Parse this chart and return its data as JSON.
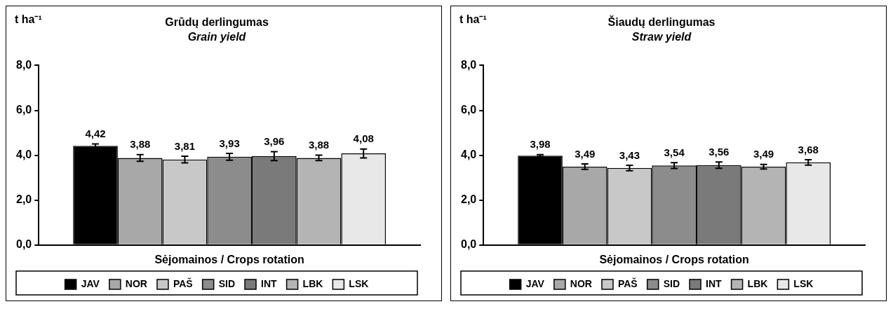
{
  "chart_data": [
    {
      "type": "bar",
      "title": "Grūdų derlingumas",
      "subtitle": "Grain yield",
      "ylabel": "t ha⁻¹",
      "xlabel": "Sėjomainos / Crops rotation",
      "categories": [
        null
      ],
      "ylim": [
        0,
        8
      ],
      "yticks": [
        {
          "value": 0,
          "label": "0,0"
        },
        {
          "value": 2,
          "label": "2,0"
        },
        {
          "value": 4,
          "label": "4,0"
        },
        {
          "value": 6,
          "label": "6,0"
        },
        {
          "value": 8,
          "label": "8,0"
        }
      ],
      "grid": false,
      "legend": "bottom",
      "tick_labels": "y",
      "series": [
        {
          "name": "JAV",
          "color": "#000000",
          "values": [
            4.42
          ],
          "errors": [
            0.08
          ],
          "value_labels": [
            "4,42"
          ]
        },
        {
          "name": "NOR",
          "color": "#a8a8a8",
          "values": [
            3.88
          ],
          "errors": [
            0.15
          ],
          "value_labels": [
            "3,88"
          ]
        },
        {
          "name": "PAŠ",
          "color": "#c8c8c8",
          "values": [
            3.81
          ],
          "errors": [
            0.15
          ],
          "value_labels": [
            "3,81"
          ]
        },
        {
          "name": "SID",
          "color": "#8c8c8c",
          "values": [
            3.93
          ],
          "errors": [
            0.15
          ],
          "value_labels": [
            "3,93"
          ]
        },
        {
          "name": "INT",
          "color": "#7a7a7a",
          "values": [
            3.96
          ],
          "errors": [
            0.2
          ],
          "value_labels": [
            "3,96"
          ]
        },
        {
          "name": "LBK",
          "color": "#b4b4b4",
          "values": [
            3.88
          ],
          "errors": [
            0.12
          ],
          "value_labels": [
            "3,88"
          ]
        },
        {
          "name": "LSK",
          "color": "#e8e8e8",
          "values": [
            4.08
          ],
          "errors": [
            0.2
          ],
          "value_labels": [
            "4,08"
          ]
        }
      ]
    },
    {
      "type": "bar",
      "title": "Šiaudų derlingumas",
      "subtitle": "Straw yield",
      "ylabel": "t ha⁻¹",
      "xlabel": "Sėjomainos / Crops rotation",
      "categories": [
        null
      ],
      "ylim": [
        0,
        8
      ],
      "yticks": [
        {
          "value": 0,
          "label": "0,0"
        },
        {
          "value": 2,
          "label": "2,0"
        },
        {
          "value": 4,
          "label": "4,0"
        },
        {
          "value": 6,
          "label": "6,0"
        },
        {
          "value": 8,
          "label": "8,0"
        }
      ],
      "grid": false,
      "legend": "bottom",
      "tick_labels": "y",
      "series": [
        {
          "name": "JAV",
          "color": "#000000",
          "values": [
            3.98
          ],
          "errors": [
            0.05
          ],
          "value_labels": [
            "3,98"
          ]
        },
        {
          "name": "NOR",
          "color": "#a8a8a8",
          "values": [
            3.49
          ],
          "errors": [
            0.12
          ],
          "value_labels": [
            "3,49"
          ]
        },
        {
          "name": "PAŠ",
          "color": "#c8c8c8",
          "values": [
            3.43
          ],
          "errors": [
            0.12
          ],
          "value_labels": [
            "3,43"
          ]
        },
        {
          "name": "SID",
          "color": "#8c8c8c",
          "values": [
            3.54
          ],
          "errors": [
            0.13
          ],
          "value_labels": [
            "3,54"
          ]
        },
        {
          "name": "INT",
          "color": "#7a7a7a",
          "values": [
            3.56
          ],
          "errors": [
            0.14
          ],
          "value_labels": [
            "3,56"
          ]
        },
        {
          "name": "LBK",
          "color": "#b4b4b4",
          "values": [
            3.49
          ],
          "errors": [
            0.1
          ],
          "value_labels": [
            "3,49"
          ]
        },
        {
          "name": "LSK",
          "color": "#e8e8e8",
          "values": [
            3.68
          ],
          "errors": [
            0.12
          ],
          "value_labels": [
            "3,68"
          ]
        }
      ]
    }
  ]
}
